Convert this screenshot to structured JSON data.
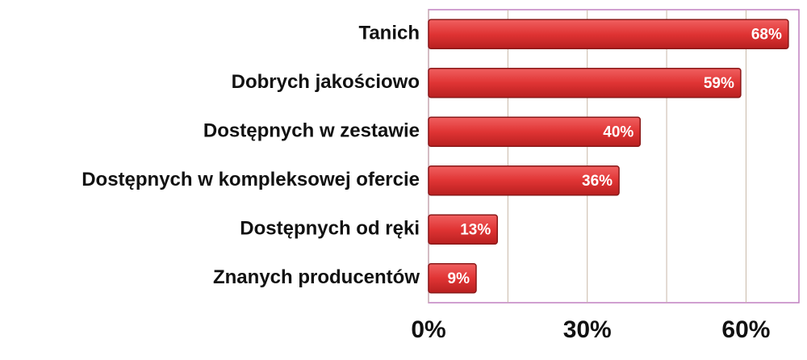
{
  "chart_data": {
    "type": "bar",
    "orientation": "horizontal",
    "categories": [
      "Tanich",
      "Dobrych jakościowo",
      "Dostępnych w zestawie",
      "Dostępnych w kompleksowej ofercie",
      "Dostępnych od ręki",
      "Znanych producentów"
    ],
    "values": [
      68,
      59,
      40,
      36,
      13,
      9
    ],
    "value_labels": [
      "68%",
      "59%",
      "40%",
      "36%",
      "13%",
      "9%"
    ],
    "color": "#e03434",
    "xlim": [
      0,
      70
    ],
    "xticks": [
      {
        "value": 0,
        "label": "0%"
      },
      {
        "value": 30,
        "label": "30%"
      },
      {
        "value": 60,
        "label": "60%"
      }
    ],
    "minor_xticks": [
      15,
      45
    ],
    "grid": true
  }
}
